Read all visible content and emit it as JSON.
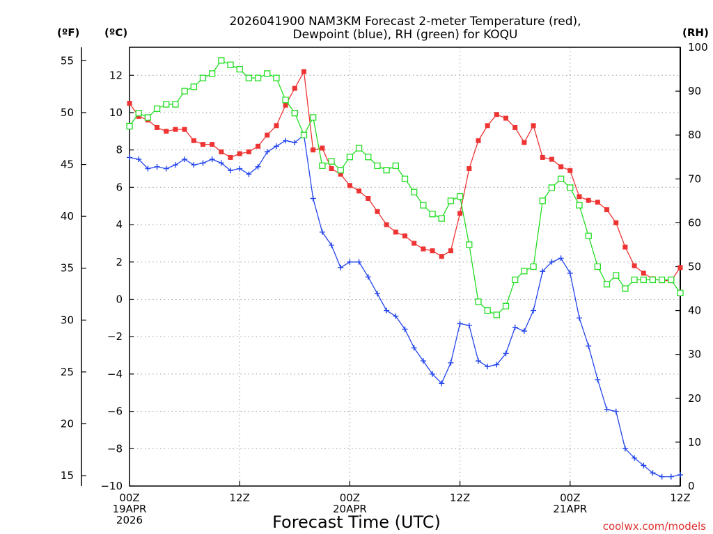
{
  "chart_data": {
    "type": "line",
    "title_line1": "2026041900 NAM3KM Forecast 2-meter Temperature (red),",
    "title_line2": "Dewpoint (blue), RH (green) for KOQU",
    "xlabel": "Forecast Time (UTC)",
    "credit": "coolwx.com/models",
    "unit_f": "(ºF)",
    "unit_c": "(ºC)",
    "unit_rh": "(RH)",
    "x_range_hours": [
      0,
      60
    ],
    "x_ticks": [
      {
        "hour": 0,
        "lines": [
          "00Z",
          "19APR",
          "2026"
        ]
      },
      {
        "hour": 12,
        "lines": [
          "12Z"
        ]
      },
      {
        "hour": 24,
        "lines": [
          "00Z",
          "20APR"
        ]
      },
      {
        "hour": 36,
        "lines": [
          "12Z"
        ]
      },
      {
        "hour": 48,
        "lines": [
          "00Z",
          "21APR"
        ]
      },
      {
        "hour": 60,
        "lines": [
          "12Z"
        ]
      }
    ],
    "left_c_axis": {
      "range": [
        -10,
        13.5
      ],
      "ticks": [
        "12",
        "10",
        "8",
        "6",
        "4",
        "2",
        "0",
        "−2",
        "−4",
        "−6",
        "−8",
        "−10"
      ],
      "tick_values": [
        12,
        10,
        8,
        6,
        4,
        2,
        0,
        -2,
        -4,
        -6,
        -8,
        -10
      ]
    },
    "left_f_axis": {
      "ticks": [
        "55",
        "50",
        "45",
        "40",
        "35",
        "30",
        "25",
        "20",
        "15"
      ],
      "tick_values": [
        55,
        50,
        45,
        40,
        35,
        30,
        25,
        20,
        15
      ]
    },
    "right_rh_axis": {
      "range": [
        0,
        100
      ],
      "ticks": [
        "100",
        "90",
        "80",
        "70",
        "60",
        "50",
        "40",
        "30",
        "20",
        "10",
        "0"
      ],
      "tick_values": [
        100,
        90,
        80,
        70,
        60,
        50,
        40,
        30,
        20,
        10,
        0
      ]
    },
    "colors": {
      "temperature": "#ee3333",
      "dewpoint": "#2244ee",
      "rh": "#22dd22",
      "grid": "#999999"
    },
    "series": [
      {
        "name": "Temperature",
        "unit": "C",
        "marker": "filled-square",
        "values": [
          10.5,
          9.8,
          9.6,
          9.2,
          9.0,
          9.1,
          9.1,
          8.5,
          8.3,
          8.3,
          7.9,
          7.6,
          7.8,
          7.9,
          8.2,
          8.8,
          9.3,
          10.4,
          11.3,
          12.2,
          8.0,
          8.1,
          7.0,
          6.7,
          6.1,
          5.8,
          5.4,
          4.7,
          4.0,
          3.6,
          3.4,
          3.0,
          2.7,
          2.6,
          2.3,
          2.6,
          4.6,
          7.0,
          8.5,
          9.3,
          9.9,
          9.7,
          9.2,
          8.4,
          9.3,
          7.6,
          7.5,
          7.1,
          6.9,
          5.5,
          5.3,
          5.2,
          4.8,
          4.1,
          2.8,
          1.8,
          1.4,
          1.1,
          1.0,
          1.0,
          1.7
        ]
      },
      {
        "name": "Dewpoint",
        "unit": "C",
        "marker": "plus",
        "values": [
          7.6,
          7.5,
          7.0,
          7.1,
          7.0,
          7.2,
          7.5,
          7.2,
          7.3,
          7.5,
          7.3,
          6.9,
          7.0,
          6.7,
          7.1,
          7.9,
          8.2,
          8.5,
          8.4,
          8.8,
          5.4,
          3.6,
          2.9,
          1.7,
          2.0,
          2.0,
          1.2,
          0.3,
          -0.6,
          -0.9,
          -1.6,
          -2.6,
          -3.3,
          -4.0,
          -4.5,
          -3.4,
          -1.3,
          -1.4,
          -3.3,
          -3.6,
          -3.5,
          -2.9,
          -1.5,
          -1.7,
          -0.6,
          1.5,
          2.0,
          2.2,
          1.4,
          -1.0,
          -2.5,
          -4.3,
          -5.9,
          -6.0,
          -8.0,
          -8.5,
          -8.9,
          -9.3,
          -9.5,
          -9.5,
          -9.4
        ]
      },
      {
        "name": "RH",
        "unit": "%",
        "marker": "open-square",
        "values": [
          82,
          85,
          84,
          86,
          87,
          87,
          90,
          91,
          93,
          94,
          97,
          96,
          95,
          93,
          93,
          94,
          93,
          88,
          85,
          80,
          84,
          73,
          74,
          72,
          75,
          77,
          75,
          73,
          72,
          73,
          70,
          67,
          64,
          62,
          61,
          65,
          66,
          55,
          42,
          40,
          39,
          41,
          47,
          49,
          50,
          65,
          68,
          70,
          68,
          64,
          57,
          50,
          46,
          48,
          45,
          47,
          47,
          47,
          47,
          47,
          44
        ]
      }
    ]
  }
}
